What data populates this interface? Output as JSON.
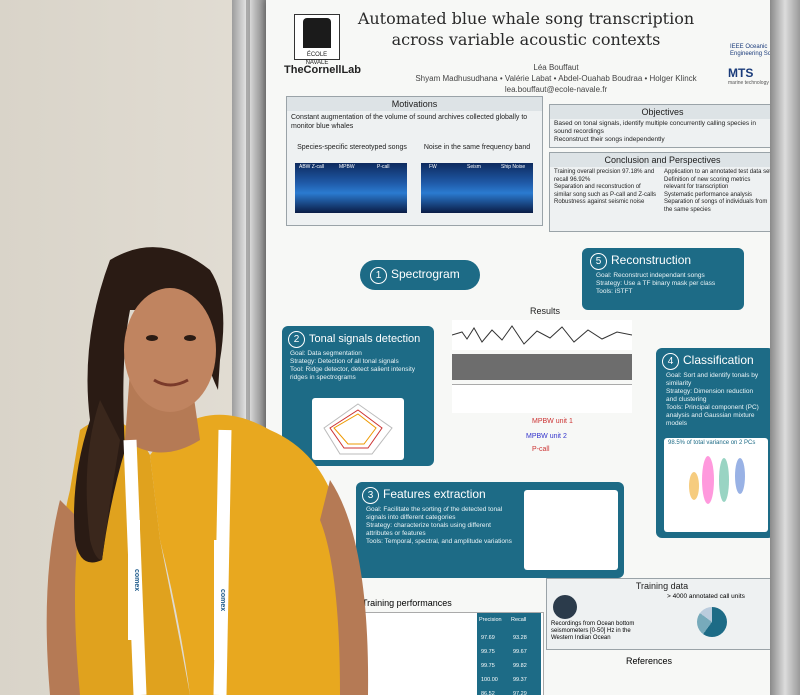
{
  "poster": {
    "title_line1": "Automated blue whale song transcription",
    "title_line2": "across variable acoustic contexts",
    "author_main": "Léa Bouffaut",
    "coauthors": "Shyam Madhusudhana • Valérie Labat • Abdel-Ouahab Boudraa • Holger Klinck",
    "email": "lea.bouffaut@ecole-navale.fr",
    "ecole_navale": "ÉCOLE NAVALE",
    "cornell_lab": "TheCornellLab",
    "ieee_text": "IEEE Oceanic Engineering Society",
    "mts_text": "MTS",
    "mts_sub": "marine technology society",
    "motivations": {
      "heading": "Motivations",
      "text": "Constant augmentation of the volume of sound archives collected globally to monitor blue whales",
      "left_caption": "Species-specific stereotyped songs",
      "right_caption": "Noise in the same frequency band",
      "spec_labels": [
        "ABW Z-call",
        "MPBW",
        "P-call",
        "FW",
        "Seism",
        "Ship Noise"
      ]
    },
    "objectives": {
      "heading": "Objectives",
      "items": [
        "Based on tonal signals, identify multiple concurrently calling species in sound recordings",
        "Reconstruct their songs independently"
      ]
    },
    "conclusion": {
      "heading": "Conclusion and Perspectives",
      "left": [
        "Training overall precision 97.18% and recall 96.92%",
        "Separation and reconstruction of similar song such as P-call and Z-calls",
        "Robustness against seismic noise"
      ],
      "right": [
        "Application to an annotated test data set",
        "Definition of new scoring metrics relevant for transcription",
        "Systematic performance analysis",
        "Separation of songs of individuals from the same species"
      ]
    },
    "steps": {
      "s1": {
        "num": "1",
        "title": "Spectrogram"
      },
      "s2": {
        "num": "2",
        "title": "Tonal signals detection",
        "goal": "Goal: Data segmentation",
        "strategy": "Strategy: Detection of all tonal signals",
        "tools": "Tool: Ridge detector, detect salient intensity ridges in spectrograms"
      },
      "s3": {
        "num": "3",
        "title": "Features extraction",
        "goal": "Goal: Facilitate the sorting of the detected tonal signals into different categories",
        "strategy": "Strategy: characterize tonals using different attributes or features",
        "tools": "Tools: Temporal, spectral, and amplitude variations"
      },
      "s4": {
        "num": "4",
        "title": "Classification",
        "goal": "Goal: Sort and identify tonals by similarity",
        "strategy": "Strategy: Dimension reduction and clustering",
        "tools": "Tools: Principal component (PC) analysis and Gaussian mixture models",
        "variance": "98.5% of total variance on 2 PCs"
      },
      "s5": {
        "num": "5",
        "title": "Reconstruction",
        "goal": "Goal: Reconstruct independant songs",
        "strategy": "Strategy: Use a TF binary mask per class",
        "tools": "Tools: iSTFT"
      }
    },
    "results": {
      "heading": "Results",
      "track_labels": [
        "MPBW unit 1",
        "MPBW unit 2",
        "P-call"
      ]
    },
    "training_data": {
      "heading": "Training data",
      "total": "> 4000 annotated call units",
      "map_caption": "Recordings from Ocean bottom seismometers [0-50] Hz in the Western Indian Ocean"
    },
    "training_perf": {
      "heading": "Training performances",
      "headers": [
        "Precision",
        "Recall"
      ],
      "precision": [
        "97.69",
        "99.75",
        "99.75",
        "100.00",
        "86.52"
      ],
      "recall": [
        "93.28",
        "99.67",
        "99.82",
        "99.37",
        "97.29"
      ]
    },
    "references": {
      "heading": "References"
    }
  },
  "lanyard": {
    "text": "comex"
  },
  "colors": {
    "step_blue": "#1d6b86",
    "shirt": "#e8a81f",
    "poster_bg": "#f7f8f6"
  }
}
